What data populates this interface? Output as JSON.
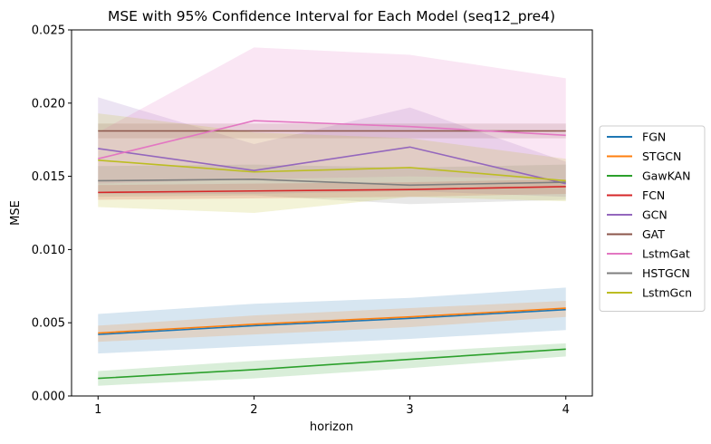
{
  "chart_data": {
    "type": "line",
    "title": "MSE with 95% Confidence Interval for Each Model (seq12_pre4)",
    "xlabel": "horizon",
    "ylabel": "MSE",
    "x": [
      1,
      2,
      3,
      4
    ],
    "xticks": [
      "1",
      "2",
      "3",
      "4"
    ],
    "xlim": [
      0.83,
      4.17
    ],
    "ylim": [
      0.0,
      0.025
    ],
    "yticks": [
      "0.000",
      "0.005",
      "0.010",
      "0.015",
      "0.020",
      "0.025"
    ],
    "yticks_values": [
      0,
      0.005,
      0.01,
      0.015,
      0.02,
      0.025
    ],
    "legend_position": "center-right outside",
    "grid": false,
    "series": [
      {
        "name": "FGN",
        "color": "#1f77b4",
        "values": [
          0.0042,
          0.0048,
          0.0053,
          0.0059
        ],
        "ci_low": [
          0.0029,
          0.0034,
          0.0039,
          0.0045
        ],
        "ci_high": [
          0.0056,
          0.0063,
          0.0067,
          0.0074
        ]
      },
      {
        "name": "STGCN",
        "color": "#ff7f0e",
        "values": [
          0.0043,
          0.0049,
          0.0054,
          0.006
        ],
        "ci_low": [
          0.0037,
          0.0042,
          0.0047,
          0.0054
        ],
        "ci_high": [
          0.0048,
          0.0055,
          0.006,
          0.0065
        ]
      },
      {
        "name": "GawKAN",
        "color": "#2ca02c",
        "values": [
          0.0012,
          0.0018,
          0.0025,
          0.0032
        ],
        "ci_low": [
          0.0007,
          0.0012,
          0.0019,
          0.0027
        ],
        "ci_high": [
          0.0017,
          0.0024,
          0.003,
          0.0036
        ]
      },
      {
        "name": "FCN",
        "color": "#d62728",
        "values": [
          0.0139,
          0.014,
          0.0141,
          0.0143
        ],
        "ci_low": [
          0.0134,
          0.0135,
          0.0136,
          0.0138
        ],
        "ci_high": [
          0.0144,
          0.0145,
          0.0146,
          0.0148
        ]
      },
      {
        "name": "GCN",
        "color": "#9467bd",
        "values": [
          0.0169,
          0.0154,
          0.017,
          0.0145
        ],
        "ci_low": [
          0.0138,
          0.0138,
          0.014,
          0.0136
        ],
        "ci_high": [
          0.0204,
          0.0172,
          0.0197,
          0.016
        ]
      },
      {
        "name": "GAT",
        "color": "#8c564b",
        "values": [
          0.0181,
          0.0181,
          0.0181,
          0.0181
        ],
        "ci_low": [
          0.0176,
          0.0176,
          0.0176,
          0.0176
        ],
        "ci_high": [
          0.0186,
          0.0186,
          0.0186,
          0.0186
        ]
      },
      {
        "name": "LstmGat",
        "color": "#e377c2",
        "values": [
          0.0162,
          0.0188,
          0.0184,
          0.0178
        ],
        "ci_low": [
          0.0145,
          0.0148,
          0.015,
          0.0148
        ],
        "ci_high": [
          0.018,
          0.0238,
          0.0233,
          0.0217
        ]
      },
      {
        "name": "HSTGCN",
        "color": "#7f7f7f",
        "values": [
          0.0147,
          0.0148,
          0.0144,
          0.0146
        ],
        "ci_low": [
          0.0136,
          0.0137,
          0.0131,
          0.0134
        ],
        "ci_high": [
          0.0157,
          0.0158,
          0.0156,
          0.0158
        ]
      },
      {
        "name": "LstmGcn",
        "color": "#bcbd22",
        "values": [
          0.0161,
          0.0153,
          0.0156,
          0.0147
        ],
        "ci_low": [
          0.0129,
          0.0125,
          0.0136,
          0.0133
        ],
        "ci_high": [
          0.0193,
          0.018,
          0.0176,
          0.0162
        ]
      }
    ]
  }
}
